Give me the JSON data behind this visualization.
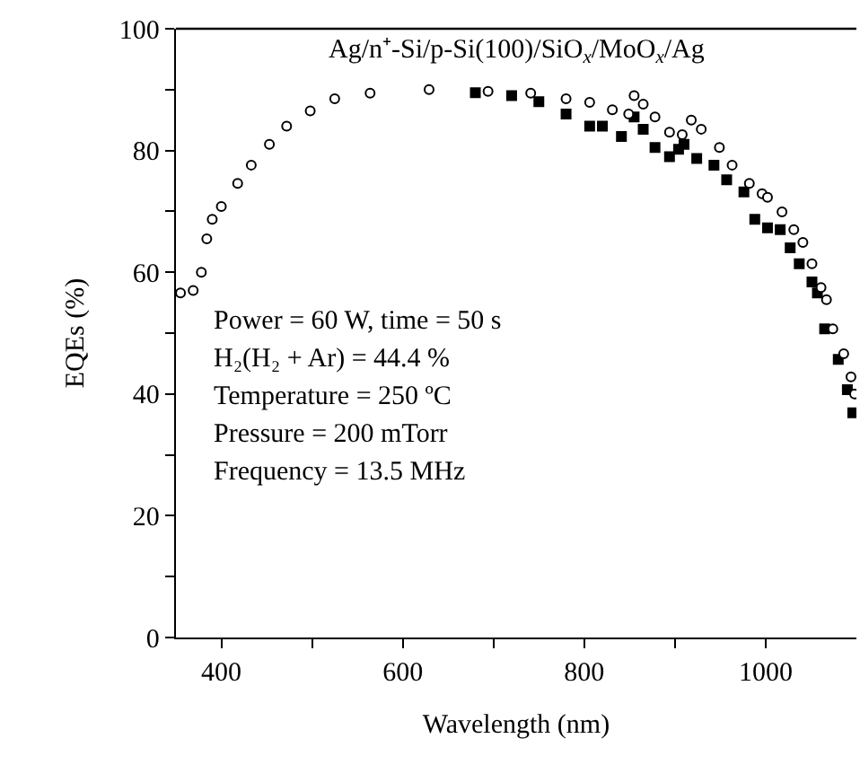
{
  "chart_data": {
    "type": "scatter",
    "title": "Ag/n⁺-Si/p-Si(100)/SiO$_{x}$/MoO$_{x}$/Ag",
    "xlabel": "Wavelength (nm)",
    "ylabel": "EQEs (%)",
    "xlim": [
      350,
      1100
    ],
    "xticks": [
      400,
      {
        "value": 500,
        "label": null
      },
      600,
      {
        "value": 700,
        "label": null
      },
      800,
      {
        "value": 900,
        "label": null
      },
      1000
    ],
    "ylim": [
      0,
      100
    ],
    "yticks": [
      0,
      {
        "value": 10,
        "label": null
      },
      20,
      {
        "value": 30,
        "label": null
      },
      40,
      {
        "value": 50,
        "label": null
      },
      60,
      {
        "value": 70,
        "label": null
      },
      80,
      {
        "value": 90,
        "label": null
      },
      100
    ],
    "legend": false,
    "annotations": [
      "Power = 60 W, time = 50 s",
      "H₂(H₂ + Ar) = 44.4 %",
      "Temperature = 250 ºC",
      "Pressure = 200 mTorr",
      "Frequency = 13.5 MHz"
    ],
    "series": [
      {
        "color": "#000000",
        "marker": "square",
        "x": [
          680,
          720,
          750,
          780,
          806,
          820,
          841,
          855,
          865,
          878,
          894,
          904,
          910,
          924,
          943,
          957,
          976,
          988,
          1002,
          1016,
          1027,
          1037,
          1051,
          1057,
          1065,
          1080,
          1090,
          1096
        ],
        "values": [
          89.5,
          89,
          88,
          86,
          84,
          84,
          82.3,
          85.5,
          83.5,
          80.5,
          79,
          80.2,
          81,
          78.7,
          77.6,
          75.2,
          73.2,
          68.7,
          67.3,
          67,
          64,
          61.4,
          58.4,
          56.6,
          50.7,
          45.7,
          40.7,
          36.9
        ]
      },
      {
        "color": "#000000",
        "marker": "circle",
        "x": [
          355,
          369,
          378,
          384,
          390,
          400,
          418,
          433,
          453,
          472,
          498,
          525,
          564,
          629,
          694,
          741,
          780,
          806,
          831,
          849,
          855,
          865,
          878,
          894,
          908,
          918,
          929,
          949,
          963,
          982,
          996,
          1002,
          1018,
          1031,
          1041,
          1051,
          1061,
          1067,
          1074,
          1086,
          1094,
          1098
        ],
        "values": [
          56.6,
          57,
          60,
          65.5,
          68.7,
          70.8,
          74.6,
          77.6,
          81,
          84,
          86.5,
          88.5,
          89.4,
          90,
          89.7,
          89.4,
          88.5,
          87.9,
          86.7,
          86,
          89,
          87.6,
          85.5,
          83,
          82.6,
          85,
          83.5,
          80.5,
          77.6,
          74.6,
          72.9,
          72.3,
          69.9,
          67,
          64.9,
          61.4,
          57.5,
          55.5,
          50.7,
          46.6,
          42.8,
          40
        ]
      }
    ]
  }
}
